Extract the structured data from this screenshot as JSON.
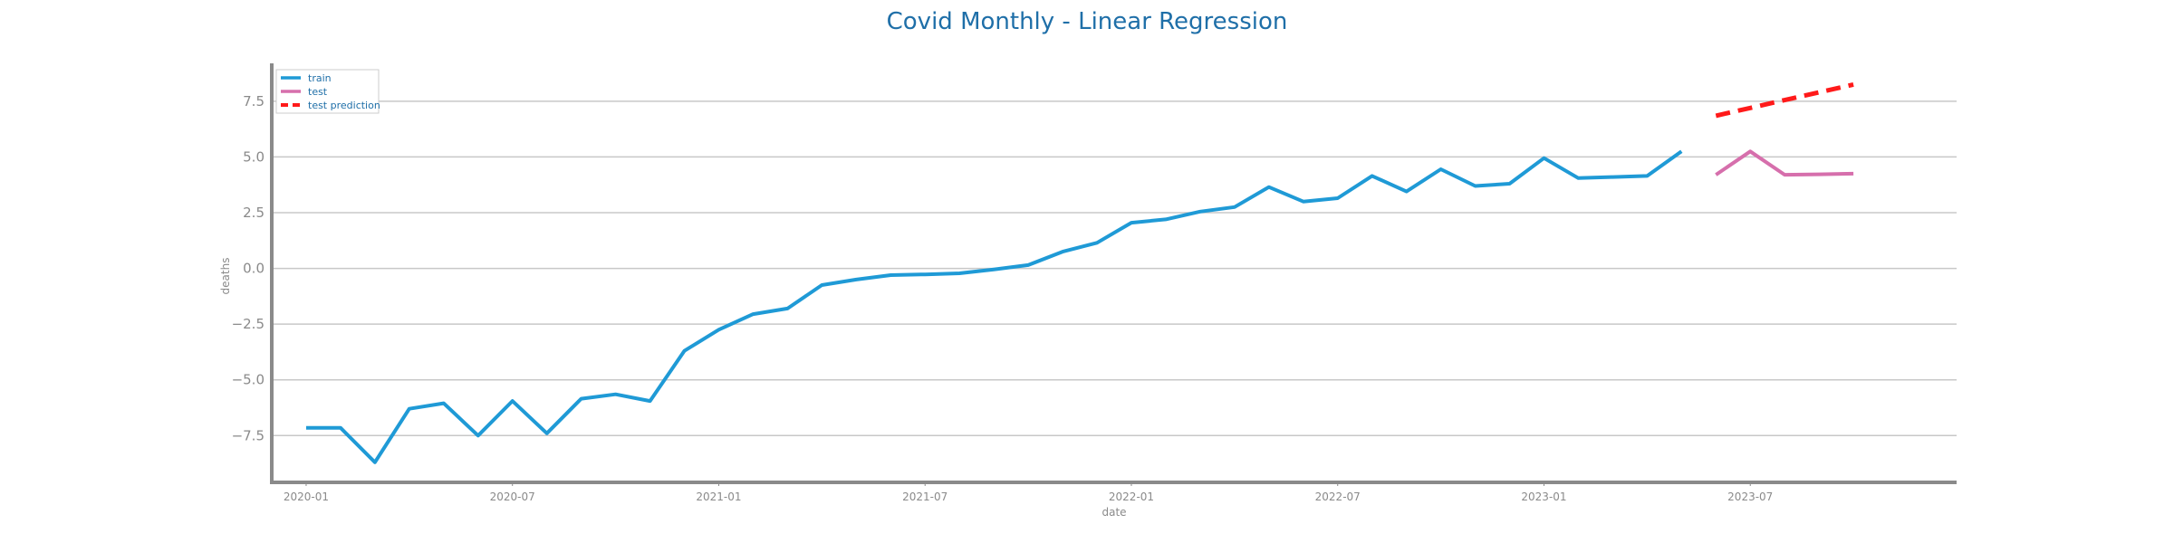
{
  "chart_data": {
    "type": "line",
    "title": "Covid Monthly - Linear Regression",
    "xlabel": "date",
    "ylabel": "deaths",
    "ylim": [
      -9.6,
      9.2
    ],
    "xlim": [
      "2019-12-01",
      "2024-01-01"
    ],
    "yticks": [
      -7.5,
      -5.0,
      -2.5,
      0.0,
      2.5,
      5.0,
      7.5
    ],
    "ytick_labels": [
      "−7.5",
      "−5.0",
      "−2.5",
      "0.0",
      "2.5",
      "5.0",
      "7.5"
    ],
    "xticks": [
      "2020-01",
      "2020-07",
      "2021-01",
      "2021-07",
      "2022-01",
      "2022-07",
      "2023-01",
      "2023-07"
    ],
    "grid": "horizontal",
    "legend_position": "top-left",
    "colors": {
      "train": "#1f9ad6",
      "test": "#d66fac",
      "test_prediction": "#ff1a1a",
      "title": "#1f6fa8",
      "grid": "#c8c8c8",
      "axis": "#8a8a8a"
    },
    "series": [
      {
        "name": "train",
        "style": "solid",
        "x": [
          "2020-01",
          "2020-02",
          "2020-03",
          "2020-04",
          "2020-05",
          "2020-06",
          "2020-07",
          "2020-08",
          "2020-09",
          "2020-10",
          "2020-11",
          "2020-12",
          "2021-01",
          "2021-02",
          "2021-03",
          "2021-04",
          "2021-05",
          "2021-06",
          "2021-07",
          "2021-08",
          "2021-09",
          "2021-10",
          "2021-11",
          "2021-12",
          "2022-01",
          "2022-02",
          "2022-03",
          "2022-04",
          "2022-05",
          "2022-06",
          "2022-07",
          "2022-08",
          "2022-09",
          "2022-10",
          "2022-11",
          "2022-12",
          "2023-01",
          "2023-02",
          "2023-03",
          "2023-04",
          "2023-05"
        ],
        "y": [
          -7.15,
          -7.15,
          -8.7,
          -6.3,
          -6.05,
          -7.5,
          -5.95,
          -7.4,
          -5.85,
          -5.65,
          -5.95,
          -3.7,
          -2.75,
          -2.05,
          -1.8,
          -0.75,
          -0.5,
          -0.3,
          -0.27,
          -0.22,
          -0.05,
          0.15,
          0.75,
          1.15,
          2.05,
          2.2,
          2.55,
          2.75,
          3.65,
          3.0,
          3.15,
          4.15,
          3.45,
          4.45,
          3.7,
          3.8,
          4.95,
          4.05,
          4.1,
          4.15,
          5.25
        ]
      },
      {
        "name": "test",
        "style": "solid",
        "x": [
          "2023-06",
          "2023-07",
          "2023-08",
          "2023-09",
          "2023-10"
        ],
        "y": [
          4.2,
          5.25,
          4.2,
          4.22,
          4.25
        ]
      },
      {
        "name": "test prediction",
        "style": "dashed",
        "x": [
          "2023-06",
          "2023-07",
          "2023-08",
          "2023-09",
          "2023-10"
        ],
        "y": [
          6.85,
          7.2,
          7.55,
          7.9,
          8.25
        ]
      }
    ]
  }
}
